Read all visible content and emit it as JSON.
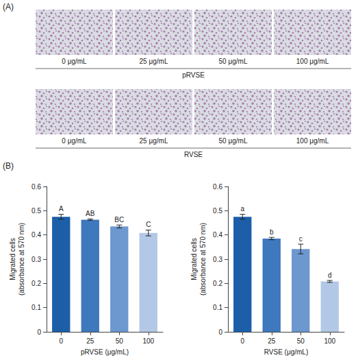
{
  "panel_a": {
    "label": "(A)",
    "rows": [
      {
        "group": "pRVSE",
        "images": [
          "0 μg/mL",
          "25 μg/mL",
          "50 μg/mL",
          "100 μg/mL"
        ]
      },
      {
        "group": "RVSE",
        "images": [
          "0 μg/mL",
          "25 μg/mL",
          "50 μg/mL",
          "100 μg/mL"
        ]
      }
    ]
  },
  "panel_b": {
    "label": "(B)"
  },
  "chart_data": [
    {
      "type": "bar",
      "categories": [
        "0",
        "25",
        "50",
        "100"
      ],
      "values": [
        0.475,
        0.463,
        0.435,
        0.408
      ],
      "errors": [
        0.01,
        0.003,
        0.006,
        0.012
      ],
      "significance_letters": [
        "A",
        "AB",
        "BC",
        "C"
      ],
      "colors": [
        "#1c5ea8",
        "#3e78bd",
        "#6c98cf",
        "#b3c8e6"
      ],
      "x_label": "pRVSE (μg/mL)",
      "y_label": "Migrated cells (absorbance at 570 nm)",
      "ylim": [
        0,
        0.6
      ],
      "yticks": [
        0,
        0.1,
        0.2,
        0.3,
        0.4,
        0.5,
        0.6
      ],
      "grid": false
    },
    {
      "type": "bar",
      "categories": [
        "0",
        "25",
        "50",
        "100"
      ],
      "values": [
        0.475,
        0.385,
        0.342,
        0.208
      ],
      "errors": [
        0.01,
        0.005,
        0.02,
        0.004
      ],
      "significance_letters": [
        "a",
        "b",
        "c",
        "d"
      ],
      "colors": [
        "#1c5ea8",
        "#3e78bd",
        "#6c98cf",
        "#b3c8e6"
      ],
      "x_label": "RVSE (μg/mL)",
      "y_label": "Migrated cells (absorbance at 570 nm)",
      "ylim": [
        0,
        0.6
      ],
      "yticks": [
        0,
        0.1,
        0.2,
        0.3,
        0.4,
        0.5,
        0.6
      ],
      "grid": false
    }
  ]
}
